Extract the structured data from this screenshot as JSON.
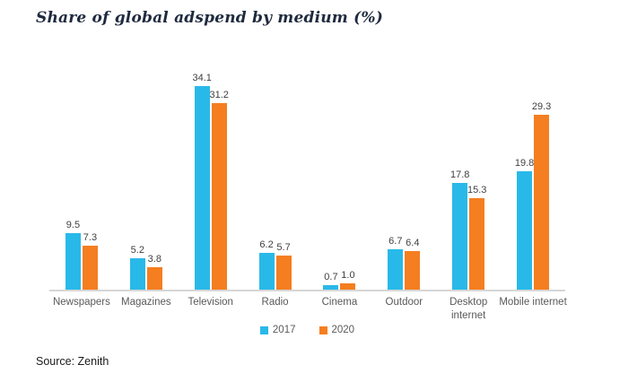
{
  "title": "Share of global adspend by medium (%)",
  "source_label": "Source: Zenith",
  "colors": {
    "series_2017": "#29b9e8",
    "series_2020": "#f57e20",
    "axis_line": "#d6d6d6",
    "value_text": "#404040",
    "category_text": "#595959",
    "title_text": "#1f2a3e"
  },
  "legend": {
    "items": [
      {
        "label": "2017",
        "color": "#29b9e8"
      },
      {
        "label": "2020",
        "color": "#f57e20"
      }
    ]
  },
  "chart_data": {
    "type": "bar",
    "title": "Share of global adspend by medium (%)",
    "categories": [
      "Newspapers",
      "Magazines",
      "Television",
      "Radio",
      "Cinema",
      "Outdoor",
      "Desktop internet",
      "Mobile internet"
    ],
    "series": [
      {
        "name": "2017",
        "color": "#29b9e8",
        "values": [
          9.5,
          5.2,
          34.1,
          6.2,
          0.7,
          6.7,
          17.8,
          19.8
        ]
      },
      {
        "name": "2020",
        "color": "#f57e20",
        "values": [
          7.3,
          3.8,
          31.2,
          5.7,
          1.0,
          6.4,
          15.3,
          29.3
        ]
      }
    ],
    "xlabel": "",
    "ylabel": "",
    "ylim": [
      0,
      36
    ],
    "grid": false,
    "value_labels": true,
    "value_label_decimals": 1,
    "legend_position": "bottom",
    "axis": "x-only"
  }
}
